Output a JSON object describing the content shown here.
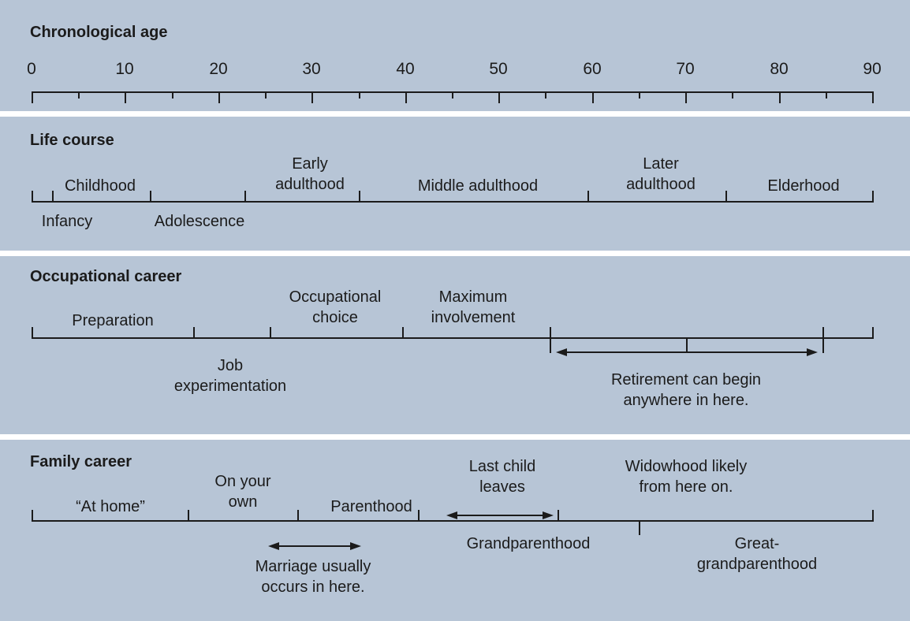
{
  "colors": {
    "panel_bg": "#b7c5d6",
    "separator": "#ffffff",
    "ink": "#1b1b1b"
  },
  "chronological_age": {
    "title": "Chronological age",
    "tick_labels": [
      "0",
      "10",
      "20",
      "30",
      "40",
      "50",
      "60",
      "70",
      "80",
      "90"
    ]
  },
  "life_course": {
    "title": "Life course",
    "labels": {
      "infancy": "Infancy",
      "childhood": "Childhood",
      "adolescence": "Adolescence",
      "early_adulthood": "Early\nadulthood",
      "middle_adulthood": "Middle adulthood",
      "later_adulthood": "Later\nadulthood",
      "elderhood": "Elderhood"
    }
  },
  "occupational_career": {
    "title": "Occupational career",
    "labels": {
      "preparation": "Preparation",
      "job_experimentation": "Job\nexperimentation",
      "occupational_choice": "Occupational\nchoice",
      "maximum_involvement": "Maximum\ninvolvement",
      "retirement_note": "Retirement can begin\nanywhere in here."
    }
  },
  "family_career": {
    "title": "Family career",
    "labels": {
      "at_home": "“At home”",
      "on_your_own": "On your\nown",
      "parenthood": "Parenthood",
      "marriage_note": "Marriage usually\noccurs in here.",
      "last_child_leaves": "Last child\nleaves",
      "grandparenthood": "Grandparenthood",
      "widowhood_note": "Widowhood likely\nfrom here on.",
      "great_grandparenthood": "Great-\ngrandparenthood"
    }
  }
}
